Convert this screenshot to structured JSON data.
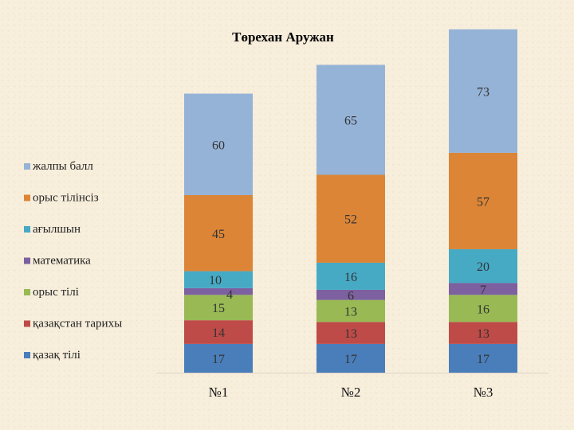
{
  "chart_data": {
    "type": "bar",
    "stacked": true,
    "title": "Төрехан Аружан",
    "categories": [
      "№1",
      "№2",
      "№3"
    ],
    "series": [
      {
        "name": "қазақ тілі",
        "color": "#4a7ebb",
        "values": [
          17,
          17,
          17
        ]
      },
      {
        "name": "қазақстан тарихы",
        "color": "#be4b48",
        "values": [
          14,
          13,
          13
        ]
      },
      {
        "name": "орыс тілі",
        "color": "#98b954",
        "values": [
          15,
          13,
          16
        ]
      },
      {
        "name": "математика",
        "color": "#7d60a0",
        "values": [
          4,
          6,
          7
        ]
      },
      {
        "name": "ағылшын",
        "color": "#46aac5",
        "values": [
          10,
          16,
          20
        ]
      },
      {
        "name": "орыс тілінсіз",
        "color": "#dc8537",
        "values": [
          45,
          52,
          57
        ]
      },
      {
        "name": "жалпы балл",
        "color": "#95b3d7",
        "values": [
          60,
          65,
          73
        ]
      }
    ],
    "legend_position": "left",
    "grid": false,
    "ylim": [
      0,
      210
    ]
  }
}
